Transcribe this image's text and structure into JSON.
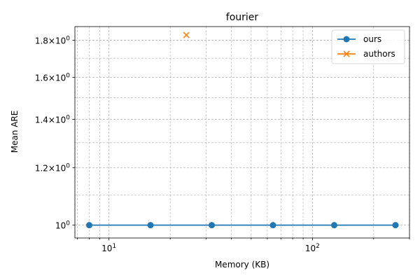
{
  "chart_data": {
    "type": "line",
    "title": "fourier",
    "xlabel": "Memory (KB)",
    "ylabel": "Mean ARE",
    "xscale": "log",
    "yscale": "log",
    "xlim": [
      6.8,
      300
    ],
    "ylim": [
      0.96,
      1.88
    ],
    "grid": "both major and minor, dashed",
    "legend_position": "top-right",
    "x_ticks": [
      {
        "value": 10,
        "base": "10",
        "exp": "1"
      },
      {
        "value": 100,
        "base": "10",
        "exp": "2"
      }
    ],
    "y_ticks": [
      {
        "value": 1.0,
        "mantissa": "10",
        "exp": "0"
      },
      {
        "value": 1.2,
        "mantissa": "1.2×10",
        "exp": "0"
      },
      {
        "value": 1.4,
        "mantissa": "1.4×10",
        "exp": "0"
      },
      {
        "value": 1.6,
        "mantissa": "1.6×10",
        "exp": "0"
      },
      {
        "value": 1.8,
        "mantissa": "1.8×10",
        "exp": "0"
      }
    ],
    "series": [
      {
        "name": "ours",
        "color": "#1f77b4",
        "marker": "circle",
        "line": true,
        "x": [
          8,
          16,
          32,
          64,
          128,
          256
        ],
        "y": [
          1.0,
          1.0,
          1.0,
          1.0,
          1.0,
          1.0
        ]
      },
      {
        "name": "authors",
        "color": "#ff7f0e",
        "marker": "x",
        "line": true,
        "x": [
          24
        ],
        "y": [
          1.83
        ]
      }
    ]
  }
}
